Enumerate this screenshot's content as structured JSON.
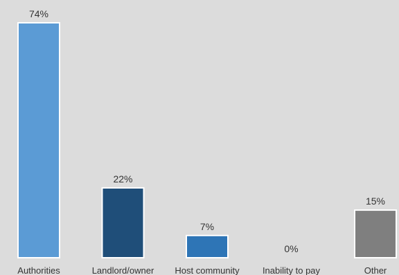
{
  "chart_data": {
    "type": "bar",
    "title": "",
    "xlabel": "",
    "ylabel": "",
    "ylim": [
      0,
      74
    ],
    "grid": false,
    "legend": "none",
    "categories": [
      "Authorities",
      "Landlord/owner",
      "Host community",
      "Inability to pay",
      "Other"
    ],
    "values": [
      74,
      22,
      7,
      0,
      15
    ],
    "data_labels": [
      "74%",
      "22%",
      "7%",
      "0%",
      "15%"
    ],
    "colors": [
      "#5b9bd5",
      "#1f4e79",
      "#2e75b6",
      "#2e75b6",
      "#7f7f7f"
    ]
  }
}
